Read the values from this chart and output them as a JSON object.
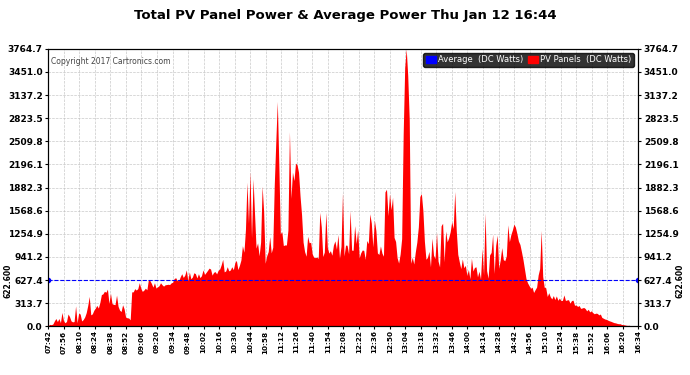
{
  "title": "Total PV Panel Power & Average Power Thu Jan 12 16:44",
  "copyright": "Copyright 2017 Cartronics.com",
  "legend_avg": "Average  (DC Watts)",
  "legend_pv": "PV Panels  (DC Watts)",
  "avg_value": 622.6,
  "y_ticks": [
    0.0,
    313.7,
    627.4,
    941.2,
    1254.9,
    1568.6,
    1882.3,
    2196.1,
    2509.8,
    2823.5,
    3137.2,
    3451.0,
    3764.7
  ],
  "ymax": 3764.7,
  "ymin": 0.0,
  "background_color": "#ffffff",
  "grid_color": "#bbbbbb",
  "fill_color": "#ff0000",
  "avg_line_color": "#0000ff",
  "title_color": "#000000",
  "x_labels": [
    "07:42",
    "07:56",
    "08:10",
    "08:24",
    "08:38",
    "08:52",
    "09:06",
    "09:20",
    "09:34",
    "09:48",
    "10:02",
    "10:16",
    "10:30",
    "10:44",
    "10:58",
    "11:12",
    "11:26",
    "11:40",
    "11:54",
    "12:08",
    "12:22",
    "12:36",
    "12:50",
    "13:04",
    "13:18",
    "13:32",
    "13:46",
    "14:00",
    "14:14",
    "14:28",
    "14:42",
    "14:56",
    "15:10",
    "15:24",
    "15:38",
    "15:52",
    "16:06",
    "16:20",
    "16:34"
  ],
  "num_points": 390
}
